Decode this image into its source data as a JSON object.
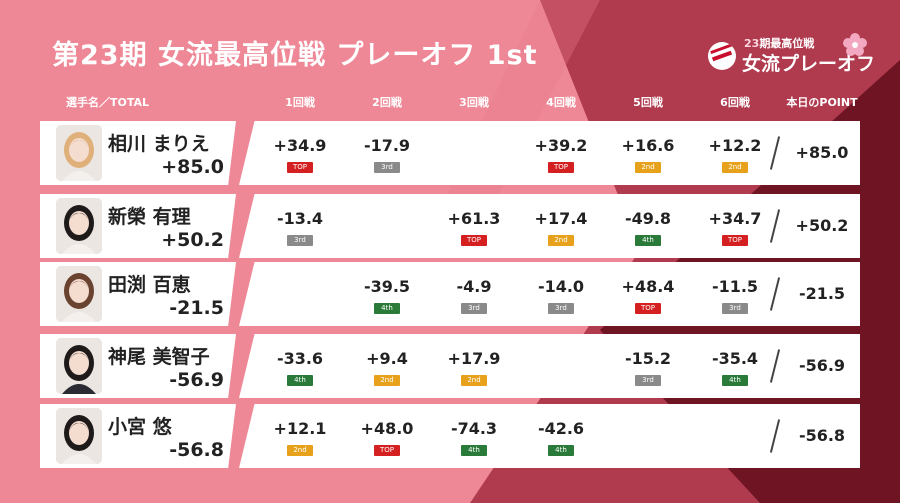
{
  "title": "第23期 女流最高位戦 プレーオフ 1st",
  "logo": {
    "sub_num": "23",
    "sub_text": "期最高位戦",
    "main": "女流プレーオフ"
  },
  "headers": {
    "player": "選手名／TOTAL",
    "rounds": [
      "1回戦",
      "2回戦",
      "3回戦",
      "4回戦",
      "5回戦",
      "6回戦"
    ],
    "day_point": "本日のPOINT"
  },
  "colors": {
    "background": "#ef8896",
    "dark_band": "#6e1423",
    "mid_band": "#a53346",
    "TOP": "#d42020",
    "2nd": "#e7a11b",
    "3rd": "#8a8a8a",
    "4th": "#2a7a3a"
  },
  "players": [
    {
      "name": "相川 まりえ",
      "total": "+85.0",
      "rounds": [
        {
          "score": "+34.9",
          "rank": "TOP"
        },
        {
          "score": "-17.9",
          "rank": "3rd"
        },
        {
          "score": "",
          "rank": ""
        },
        {
          "score": "+39.2",
          "rank": "TOP"
        },
        {
          "score": "+16.6",
          "rank": "2nd"
        },
        {
          "score": "+12.2",
          "rank": "2nd"
        }
      ],
      "day_point": "+85.0"
    },
    {
      "name": "新榮 有理",
      "total": "+50.2",
      "rounds": [
        {
          "score": "-13.4",
          "rank": "3rd"
        },
        {
          "score": "",
          "rank": ""
        },
        {
          "score": "+61.3",
          "rank": "TOP"
        },
        {
          "score": "+17.4",
          "rank": "2nd"
        },
        {
          "score": "-49.8",
          "rank": "4th"
        },
        {
          "score": "+34.7",
          "rank": "TOP"
        }
      ],
      "day_point": "+50.2"
    },
    {
      "name": "田渕 百恵",
      "total": "-21.5",
      "rounds": [
        {
          "score": "",
          "rank": ""
        },
        {
          "score": "-39.5",
          "rank": "4th"
        },
        {
          "score": "-4.9",
          "rank": "3rd"
        },
        {
          "score": "-14.0",
          "rank": "3rd"
        },
        {
          "score": "+48.4",
          "rank": "TOP"
        },
        {
          "score": "-11.5",
          "rank": "3rd"
        }
      ],
      "day_point": "-21.5"
    },
    {
      "name": "神尾 美智子",
      "total": "-56.9",
      "rounds": [
        {
          "score": "-33.6",
          "rank": "4th"
        },
        {
          "score": "+9.4",
          "rank": "2nd"
        },
        {
          "score": "+17.9",
          "rank": "2nd"
        },
        {
          "score": "",
          "rank": ""
        },
        {
          "score": "-15.2",
          "rank": "3rd"
        },
        {
          "score": "-35.4",
          "rank": "4th"
        }
      ],
      "day_point": "-56.9"
    },
    {
      "name": "小宮 悠",
      "total": "-56.8",
      "rounds": [
        {
          "score": "+12.1",
          "rank": "2nd"
        },
        {
          "score": "+48.0",
          "rank": "TOP"
        },
        {
          "score": "-74.3",
          "rank": "4th"
        },
        {
          "score": "-42.6",
          "rank": "4th"
        },
        {
          "score": "",
          "rank": ""
        },
        {
          "score": "",
          "rank": ""
        }
      ],
      "day_point": "-56.8"
    }
  ]
}
